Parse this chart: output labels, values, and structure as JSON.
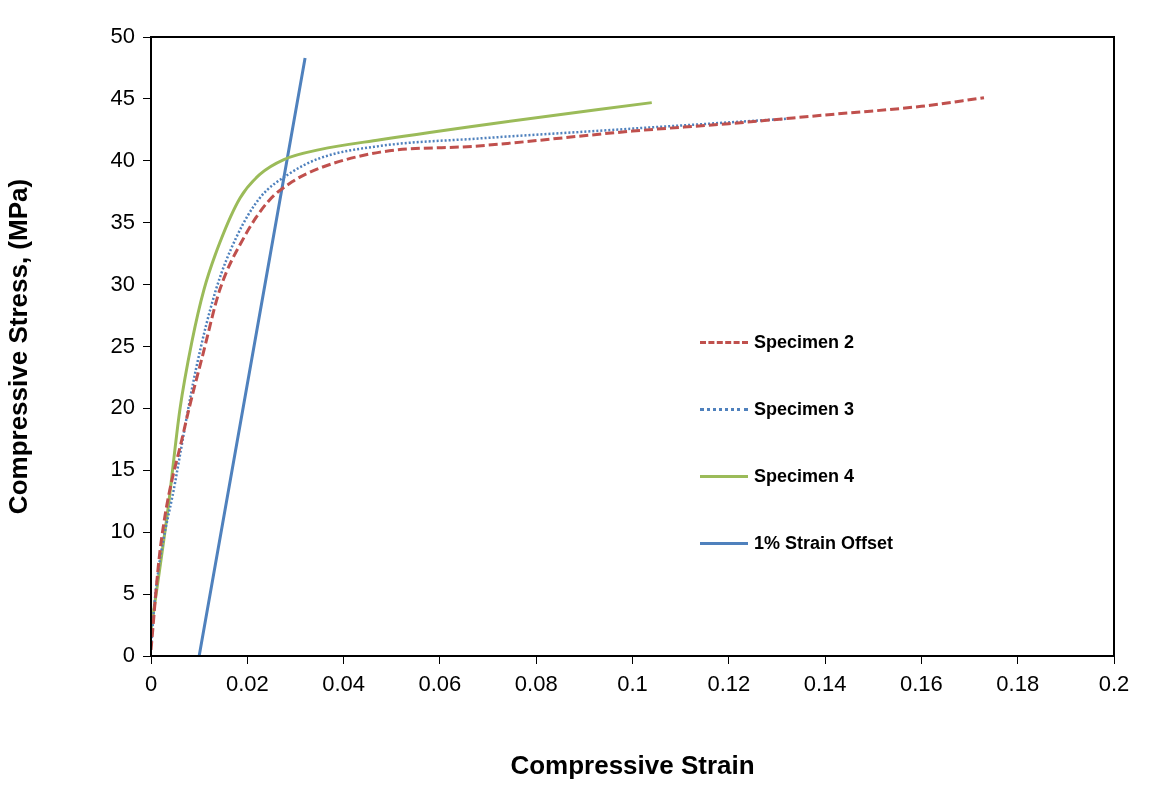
{
  "chart_data": {
    "type": "line",
    "xlabel": "Compressive Strain",
    "ylabel": "Compressive Stress, (MPa)",
    "xlim": [
      0,
      0.2
    ],
    "xticks": [
      0,
      0.02,
      0.04,
      0.06,
      0.08,
      0.1,
      0.12,
      0.14,
      0.16,
      0.18,
      0.2
    ],
    "ylim": [
      0,
      50
    ],
    "yticks": [
      0,
      5,
      10,
      15,
      20,
      25,
      30,
      35,
      40,
      45,
      50
    ],
    "grid": false,
    "legend": "right",
    "marker": "none",
    "series": [
      {
        "name": "Specimen 2",
        "color": "#c0504d",
        "line_style": "dashed",
        "x": [
          0,
          0.0019,
          0.0069,
          0.011,
          0.0143,
          0.0193,
          0.0243,
          0.0293,
          0.035,
          0.0476,
          0.068,
          0.1,
          0.12,
          0.14,
          0.16,
          0.173
        ],
        "values": [
          0.5,
          8.6,
          18.3,
          24.7,
          29.6,
          33.8,
          36.7,
          38.3,
          39.4,
          40.7,
          41.2,
          42.4,
          43.0,
          43.7,
          44.4,
          45.1
        ]
      },
      {
        "name": "Specimen 3",
        "color": "#4f81bd",
        "line_style": "dotted",
        "x": [
          0,
          0.001,
          0.005,
          0.0093,
          0.0135,
          0.0177,
          0.0226,
          0.0285,
          0.035,
          0.0476,
          0.068,
          0.1,
          0.132
        ],
        "values": [
          0.8,
          5.3,
          14,
          23.1,
          29.6,
          33.8,
          37,
          38.9,
          40.2,
          41.2,
          41.8,
          42.6,
          43.4
        ]
      },
      {
        "name": "Specimen 4",
        "color": "#9bbb59",
        "line_style": "solid",
        "x": [
          0,
          0.0035,
          0.006,
          0.0085,
          0.011,
          0.0143,
          0.0185,
          0.0226,
          0.0276,
          0.035,
          0.0476,
          0.0708,
          0.104
        ],
        "values": [
          2.1,
          11.8,
          19.9,
          25.4,
          29.6,
          33.4,
          37,
          38.9,
          40.1,
          40.9,
          41.7,
          43.0,
          44.7
        ]
      },
      {
        "name": "1% Strain Offset",
        "color": "#4f81bd",
        "line_style": "solid",
        "x": [
          0.01,
          0.032
        ],
        "values": [
          0,
          48.3
        ]
      }
    ]
  }
}
